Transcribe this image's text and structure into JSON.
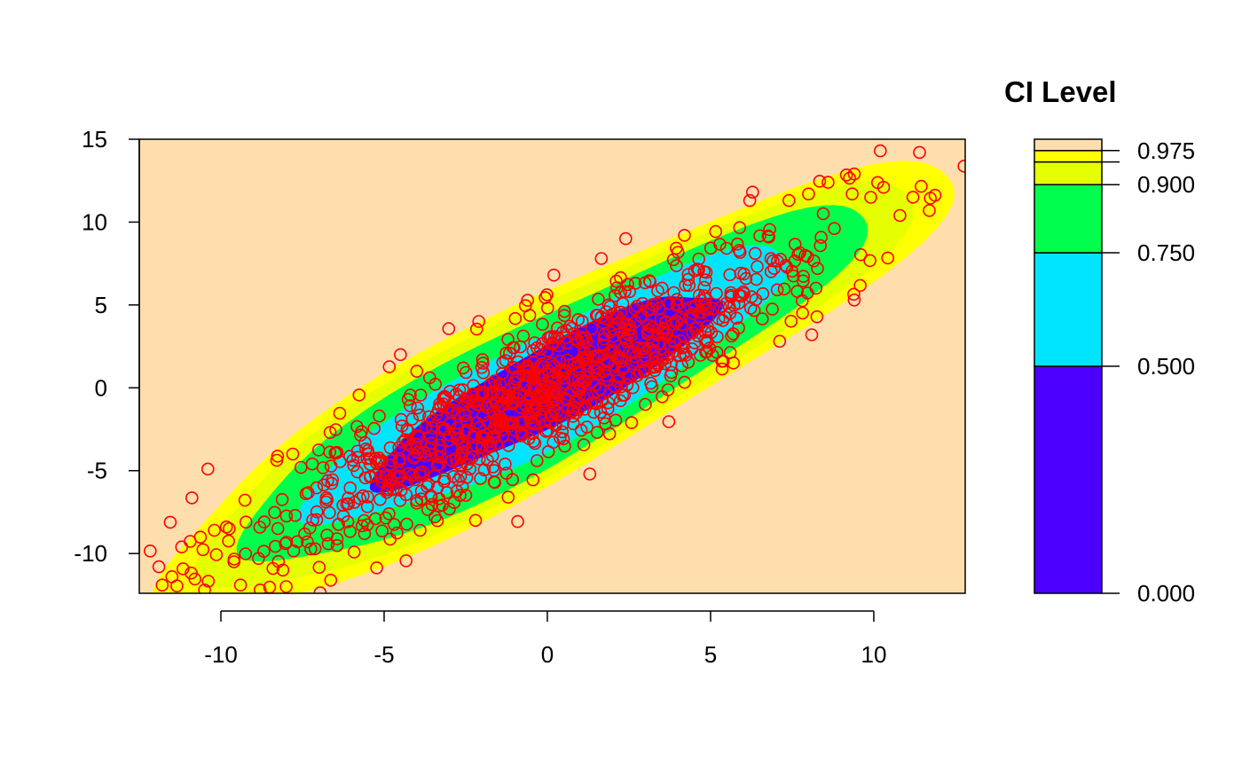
{
  "chart_data": {
    "type": "scatter",
    "subtype": "contour-density-with-scatter",
    "title": "",
    "xlabel": "",
    "ylabel": "",
    "xlim": [
      -12.5,
      12.8
    ],
    "ylim": [
      -12.4,
      15
    ],
    "xticks": [
      -10,
      -5,
      0,
      5,
      10
    ],
    "yticks": [
      -10,
      -5,
      0,
      5,
      10,
      15
    ],
    "grid": false,
    "background_color": "#FFDEAD",
    "point_color": "#FF0000",
    "point_style": "open-circle",
    "approx_point_count": 1000,
    "distribution": {
      "mean": [
        0,
        0
      ],
      "sd_x": 4.5,
      "sd_y": 5.0,
      "correlation": 0.9
    },
    "sample_points": [
      [
        -11.9,
        -10.8
      ],
      [
        -11.8,
        -11.9
      ],
      [
        -11.5,
        -11.4
      ],
      [
        -11.2,
        -9.6
      ],
      [
        -10.4,
        -4.9
      ],
      [
        -10.5,
        -12.2
      ],
      [
        -10.2,
        -8.6
      ],
      [
        -9.6,
        -10.5
      ],
      [
        -9.4,
        -11.9
      ],
      [
        -8.8,
        -12.2
      ],
      [
        -8.0,
        -12.0
      ],
      [
        -8.1,
        -11.0
      ],
      [
        -7.8,
        -4.0
      ],
      [
        -7.2,
        -4.6
      ],
      [
        -4.5,
        2.0
      ],
      [
        -4.0,
        1.0
      ],
      [
        -2.1,
        4.0
      ],
      [
        0.2,
        6.8
      ],
      [
        2.4,
        9.0
      ],
      [
        4.2,
        9.2
      ],
      [
        6.2,
        11.3
      ],
      [
        7.4,
        11.3
      ],
      [
        8.0,
        11.7
      ],
      [
        8.6,
        12.4
      ],
      [
        9.4,
        12.9
      ],
      [
        10.2,
        14.3
      ],
      [
        11.4,
        14.2
      ],
      [
        10.3,
        12.1
      ],
      [
        11.2,
        11.5
      ],
      [
        11.7,
        10.7
      ],
      [
        10.8,
        10.4
      ],
      [
        9.4,
        5.3
      ],
      [
        8.1,
        3.2
      ],
      [
        5.7,
        1.5
      ],
      [
        3.0,
        -1.0
      ],
      [
        1.3,
        -5.2
      ],
      [
        -1.2,
        -6.6
      ],
      [
        -2.2,
        -8.0
      ],
      [
        -3.9,
        -8.6
      ],
      [
        -5.6,
        -8.8
      ]
    ],
    "legend": {
      "title": "CI Level",
      "position": "right",
      "levels": [
        {
          "from": 0.0,
          "to": 0.5,
          "color": "#4C00FF"
        },
        {
          "from": 0.5,
          "to": 0.75,
          "color": "#00E5FF"
        },
        {
          "from": 0.75,
          "to": 0.9,
          "color": "#00FF4D"
        },
        {
          "from": 0.9,
          "to": 0.95,
          "color": "#E6FF00"
        },
        {
          "from": 0.95,
          "to": 0.975,
          "color": "#FFFF00"
        },
        {
          "from": 0.975,
          "to": 1.0,
          "color": "#FFDEAD"
        }
      ],
      "tick_values": [
        0.0,
        0.5,
        0.75,
        0.9,
        0.95,
        0.975
      ],
      "tick_labels": [
        "0.000",
        "0.500",
        "0.750",
        "0.900",
        "",
        "0.975"
      ]
    }
  }
}
